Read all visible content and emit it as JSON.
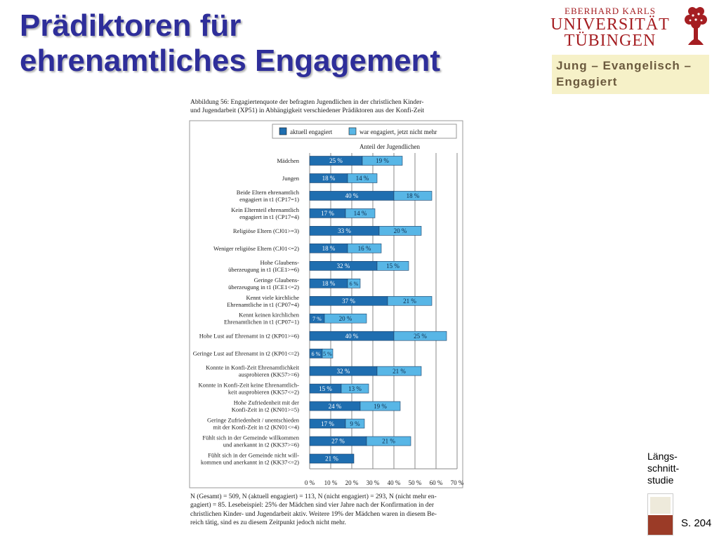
{
  "slide": {
    "title_line1": "Prädiktoren für",
    "title_line2": "ehrenamtliches Engagement",
    "side_label_line1": "Längs-",
    "side_label_line2": "schnitt-",
    "side_label_line3": "studie",
    "page_ref": "S. 204"
  },
  "logo": {
    "line1": "EBERHARD KARLS",
    "line2": "UNIVERSITÄT",
    "line3": "TÜBINGEN",
    "icon": "tree-seal-icon",
    "color": "#a51e22"
  },
  "tagline": {
    "line1": "Jung – Evangelisch –",
    "line2": "Engagiert"
  },
  "figure": {
    "caption_line1": "Abbildung 56: Engagiertenquote der befragten Jugendlichen in der christlichen Kinder-",
    "caption_line2": "und Jugendarbeit (XP51) in Abhängigkeit verschiedener Prädiktoren aus der Konfi-Zeit",
    "note_line1": "N (Gesamt) = 509, N (aktuell engagiert) = 113, N (nicht engagiert) = 293, N (nicht mehr en-",
    "note_line2": "gagiert) = 85. Lesebeispiel: 25% der Mädchen sind vier Jahre nach der Konfirmation in der",
    "note_line3": "christlichen Kinder- und Jugendarbeit aktiv. Weitere 19% der Mädchen waren in diesem Be-",
    "note_line4": "reich tätig, sind es zu diesem Zeitpunkt jedoch nicht mehr."
  },
  "chart_data": {
    "type": "bar",
    "orientation": "horizontal",
    "stacked": true,
    "subtitle": "Anteil der Jugendlichen",
    "xlim": [
      0,
      70
    ],
    "x_ticks": [
      "0 %",
      "10 %",
      "20 %",
      "30 %",
      "40 %",
      "50 %",
      "60 %",
      "70 %"
    ],
    "grid": true,
    "legend_position": "top",
    "categories": [
      [
        "Mädchen"
      ],
      [
        "Jungen"
      ],
      [
        "Beide Eltern ehrenamtlich",
        "engagiert in t1 (CP17=1)"
      ],
      [
        "Kein Elternteil ehrenamtlich",
        "engagiert in t1 (CP17=4)"
      ],
      [
        "Religiöse Eltern (CJ01>=3)"
      ],
      [
        "Weniger religiöse Eltern (CJ01<=2)"
      ],
      [
        "Hohe Glaubens-",
        "überzeugung in t1 (ICE1>=6)"
      ],
      [
        "Geringe Glaubens-",
        "überzeugung in t1 (ICE1<=2)"
      ],
      [
        "Kennt viele kirchliche",
        "Ehrenamtliche in t1 (CP07=4)"
      ],
      [
        "Kennt keinen kirchlichen",
        "Ehrenamtlichen in t1 (CP07=1)"
      ],
      [
        "Hohe Lust auf Ehrenamt in t2 (KP01>=6)"
      ],
      [
        "Geringe Lust auf Ehrenamt in t2 (KP01<=2)"
      ],
      [
        "Konnte in Konfi-Zeit Ehrenamtlichkeit",
        "ausprobieren (KK57>=6)"
      ],
      [
        "Konnte in Konfi-Zeit keine Ehrenamtlich-",
        "keit ausprobieren (KK57<=2)"
      ],
      [
        "Hohe Zufriedenheit mit der",
        "Konfi-Zeit in t2 (KN01>=5)"
      ],
      [
        "Geringe Zufriedenheit / unentschieden",
        "mit der Konfi-Zeit in t2 (KN01<=4)"
      ],
      [
        "Fühlt sich in der Gemeinde willkommen",
        "und anerkannt in t2 (KK37>=6)"
      ],
      [
        "Fühlt sich in der Gemeinde nicht will-",
        "kommen und anerkannt in t2 (KK37<=2)"
      ]
    ],
    "series": [
      {
        "name": "aktuell engagiert",
        "color": "#1f6eb0",
        "values": [
          25,
          18,
          40,
          17,
          33,
          18,
          32,
          18,
          37,
          7,
          40,
          6,
          32,
          15,
          24,
          17,
          27,
          21
        ],
        "labels": [
          "25 %",
          "18 %",
          "40 %",
          "17 %",
          "33 %",
          "18 %",
          "32 %",
          "18 %",
          "37 %",
          "7 %",
          "40 %",
          "6 %",
          "32 %",
          "15 %",
          "24 %",
          "17 %",
          "27 %",
          "21 %"
        ]
      },
      {
        "name": "war engagiert, jetzt nicht mehr",
        "color": "#58b6e6",
        "values": [
          19,
          14,
          18,
          14,
          20,
          16,
          15,
          6,
          21,
          20,
          25,
          5,
          21,
          13,
          19,
          9,
          21,
          0
        ],
        "labels": [
          "19 %",
          "14 %",
          "18 %",
          "14 %",
          "20 %",
          "16 %",
          "15 %",
          "6 %",
          "21 %",
          "20 %",
          "25 %",
          "5 %",
          "21 %",
          "13 %",
          "19 %",
          "9 %",
          "21 %",
          ""
        ]
      }
    ]
  }
}
